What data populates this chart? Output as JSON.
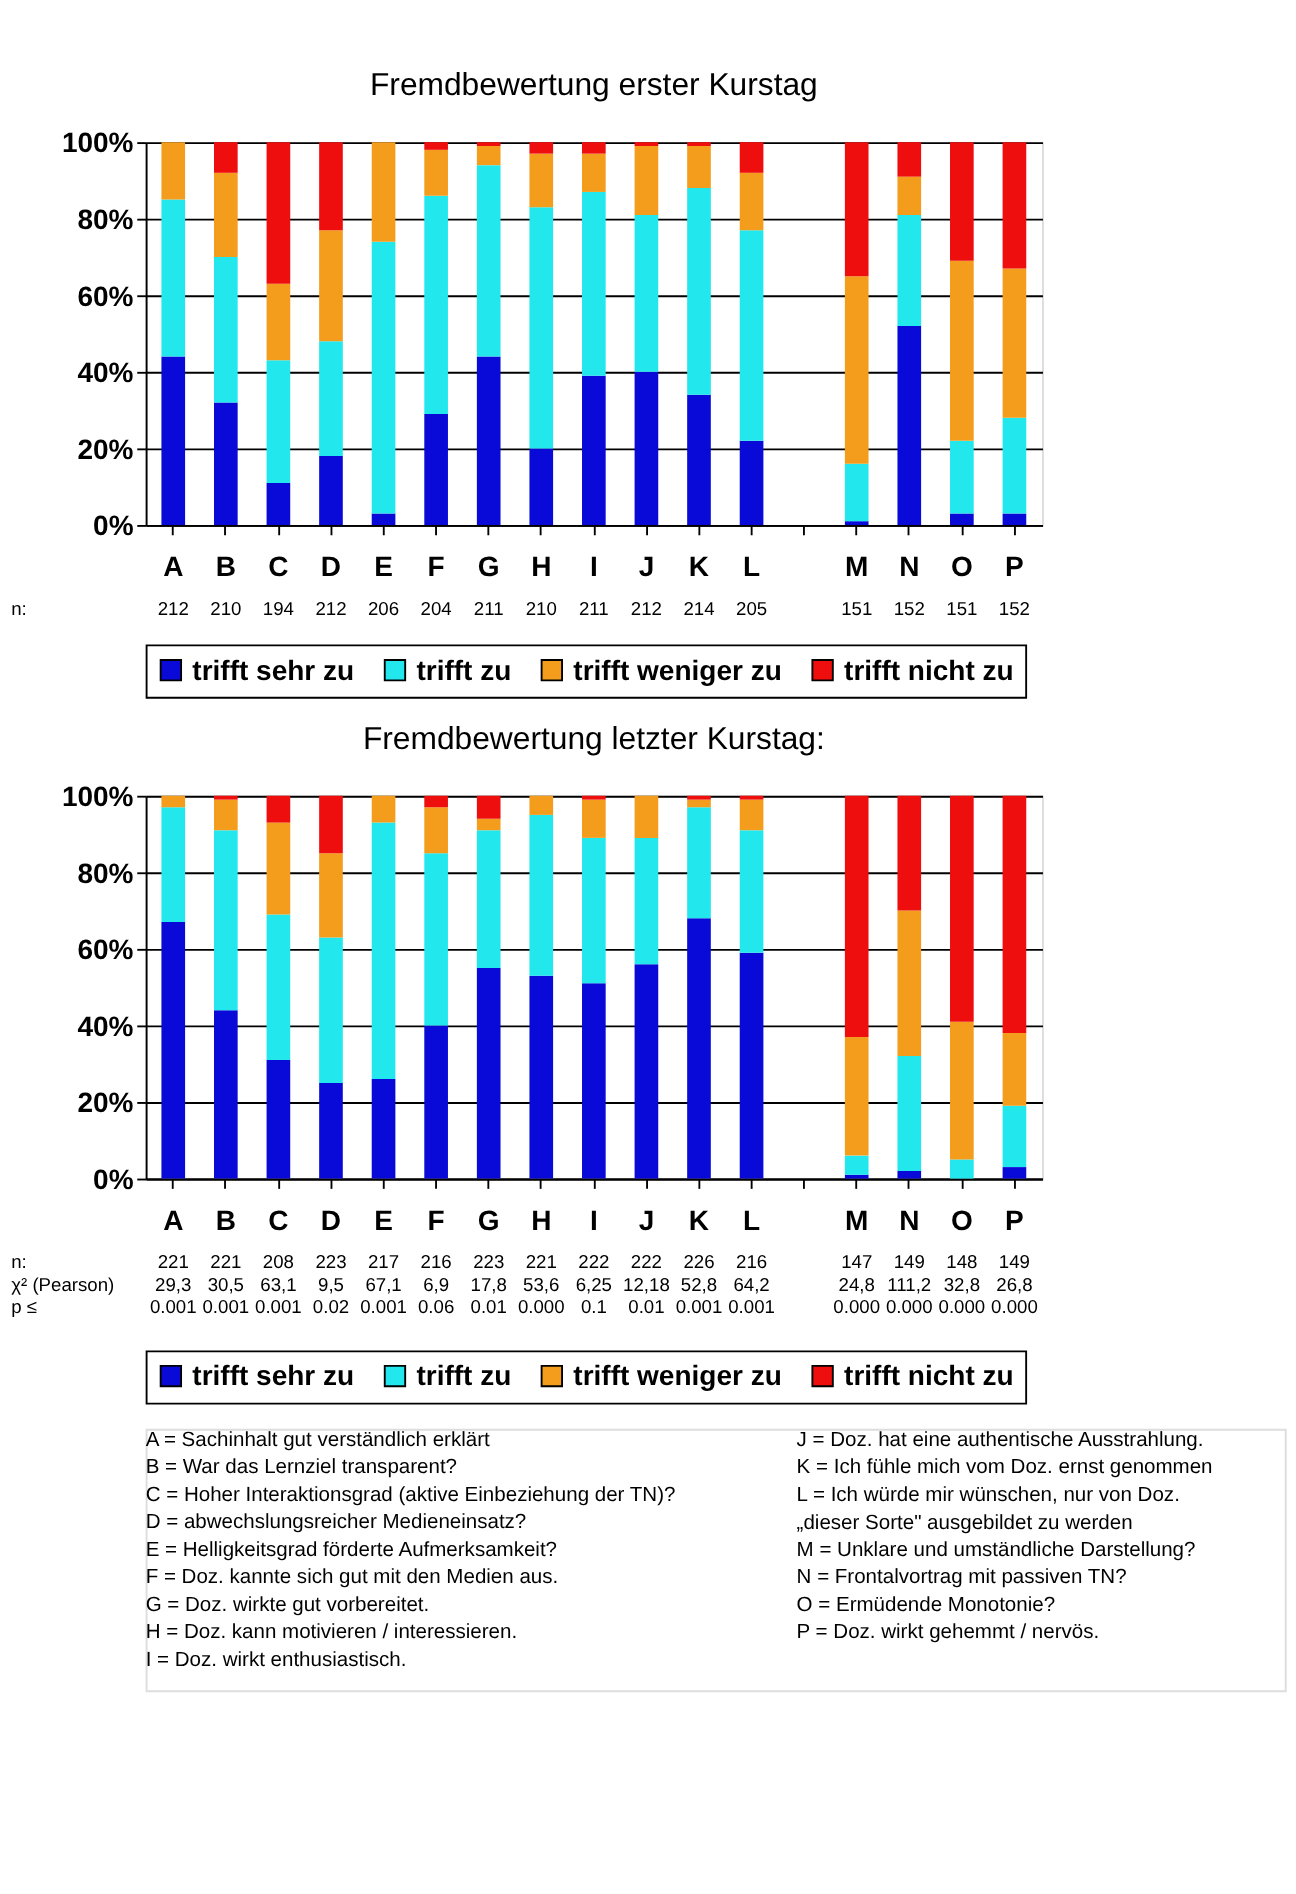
{
  "chart_data": [
    {
      "type": "bar",
      "title": "Fremdbewertung erster Kurstag",
      "stacked": true,
      "grid": "y",
      "legend": "bottom",
      "categories": [
        "A",
        "B",
        "C",
        "D",
        "E",
        "F",
        "G",
        "H",
        "I",
        "J",
        "K",
        "L",
        null,
        "M",
        "N",
        "O",
        "P"
      ],
      "ylim": [
        0,
        100
      ],
      "yticks": [
        {
          "value": 0,
          "label": "0%"
        },
        {
          "value": 20,
          "label": "20%"
        },
        {
          "value": 40,
          "label": "40%"
        },
        {
          "value": 60,
          "label": "60%"
        },
        {
          "value": 80,
          "label": "80%"
        },
        {
          "value": 100,
          "label": "100%"
        }
      ],
      "series": [
        {
          "name": "trifft sehr zu",
          "color": "#0a0ad8",
          "values": [
            44,
            32,
            11,
            18,
            3,
            29,
            44,
            20,
            39,
            40,
            34,
            22,
            null,
            1,
            52,
            3,
            3
          ]
        },
        {
          "name": "trifft zu",
          "color": "#22e8ee",
          "values": [
            41,
            38,
            32,
            30,
            71,
            57,
            50,
            63,
            48,
            41,
            54,
            55,
            null,
            15,
            29,
            19,
            25
          ]
        },
        {
          "name": "trifft weniger zu",
          "color": "#f49c1c",
          "values": [
            15,
            22,
            20,
            29,
            26,
            12,
            5,
            14,
            10,
            18,
            11,
            15,
            null,
            49,
            10,
            47,
            39
          ]
        },
        {
          "name": "trifft nicht zu",
          "color": "#ee0e0e",
          "values": [
            0,
            8,
            37,
            23,
            0,
            2,
            1,
            3,
            3,
            1,
            1,
            8,
            null,
            35,
            9,
            31,
            33
          ]
        }
      ],
      "annotations": [
        "n:",
        "212",
        "210",
        "194",
        "212",
        "206",
        "204",
        "211",
        "210",
        "211",
        "212",
        "214",
        "205",
        "151",
        "152",
        "151",
        "152"
      ]
    },
    {
      "type": "bar",
      "title": "Fremdbewertung letzter Kurstag:",
      "stacked": true,
      "grid": "y",
      "legend": "bottom",
      "categories": [
        "A",
        "B",
        "C",
        "D",
        "E",
        "F",
        "G",
        "H",
        "I",
        "J",
        "K",
        "L",
        null,
        "M",
        "N",
        "O",
        "P"
      ],
      "ylim": [
        0,
        100
      ],
      "yticks": [
        {
          "value": 0,
          "label": "0%"
        },
        {
          "value": 20,
          "label": "20%"
        },
        {
          "value": 40,
          "label": "40%"
        },
        {
          "value": 60,
          "label": "60%"
        },
        {
          "value": 80,
          "label": "80%"
        },
        {
          "value": 100,
          "label": "100%"
        }
      ],
      "series": [
        {
          "name": "trifft sehr zu",
          "color": "#0a0ad8",
          "values": [
            67,
            44,
            31,
            25,
            26,
            40,
            55,
            53,
            51,
            56,
            68,
            59,
            null,
            1,
            2,
            0,
            3
          ]
        },
        {
          "name": "trifft zu",
          "color": "#22e8ee",
          "values": [
            30,
            47,
            38,
            38,
            67,
            45,
            36,
            42,
            38,
            33,
            29,
            32,
            null,
            5,
            30,
            5,
            16
          ]
        },
        {
          "name": "trifft weniger zu",
          "color": "#f49c1c",
          "values": [
            3,
            8,
            24,
            22,
            7,
            12,
            3,
            5,
            10,
            11,
            2,
            8,
            null,
            31,
            38,
            36,
            19
          ]
        },
        {
          "name": "trifft nicht zu",
          "color": "#ee0e0e",
          "values": [
            0,
            1,
            7,
            15,
            0,
            3,
            6,
            0,
            1,
            0,
            1,
            1,
            null,
            63,
            30,
            59,
            62
          ]
        }
      ],
      "annotations": [
        "n:\nχ² (Pearson)\np ≤",
        "221\n29,3\n0.001",
        "221\n30,5\n0.001",
        "208\n63,1\n0.001",
        "223\n9,5\n0.02",
        "217\n67,1\n0.001",
        "216\n6,9\n0.06",
        "223\n17,8\n0.01",
        "221\n53,6\n0.000",
        "222\n6,25\n0.1",
        "222\n12,18\n0.01",
        "226\n52,8\n0.001",
        "216\n64,2\n0.001",
        "147\n24,8\n0.000",
        "149\n111,2\n0.000",
        "148\n32,8\n0.000",
        "149\n26,8\n0.000"
      ]
    },
    {
      "type": "other",
      "annotations": [
        "A =  Sachinhalt gut verständlich erklärt",
        "B =  War das Lernziel transparent?",
        "C =  Hoher Interaktionsgrad (aktive Einbeziehung der TN)?",
        "D =  abwechslungsreicher Medieneinsatz?",
        "E =  Helligkeitsgrad förderte Aufmerksamkeit?",
        "F =  Doz. kannte sich gut mit den Medien aus.",
        "G =  Doz. wirkte gut vorbereitet.",
        "H =  Doz. kann motivieren / interessieren.",
        "I =  Doz. wirkt enthusiastisch.",
        "J =  Doz. hat eine authentische Ausstrahlung.",
        "K =  Ich fühle mich vom Doz. ernst genommen",
        "L =  Ich würde mir wünschen, nur von Doz.\n       „dieser Sorte\" ausgebildet zu werden",
        "M =  Unklare und umständliche Darstellung?",
        "N =  Frontalvortrag mit passiven TN?",
        "O =  Ermüdende Monotonie?",
        "P =  Doz. wirkt gehemmt / nervös."
      ]
    }
  ]
}
